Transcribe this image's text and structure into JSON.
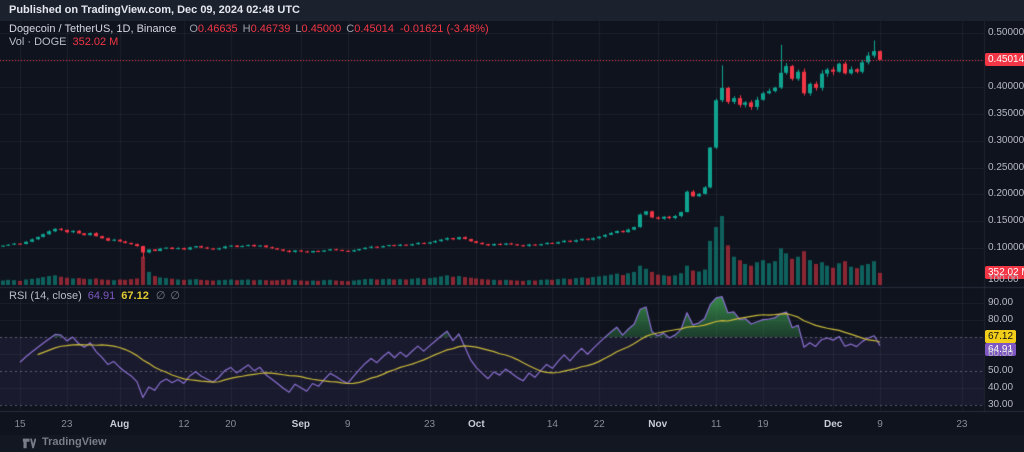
{
  "published_bar": {
    "text": "Published on TradingView.com, Dec 09, 2024 02:48 UTC"
  },
  "legend": {
    "symbol": "Dogecoin / TetherUS, 1D, Binance",
    "ohlc": {
      "o_label": "O",
      "o": "0.46635",
      "h_label": "H",
      "h": "0.46739",
      "l_label": "L",
      "l": "0.45000",
      "c_label": "C",
      "c": "0.45014",
      "change": "-0.01621 (-3.48%)"
    },
    "volume_label": "Vol · DOGE",
    "volume_value": "352.02 M"
  },
  "rsi_legend": {
    "label": "RSI (14, close)",
    "rsi_value": "64.91",
    "ma_value": "67.12",
    "empty1": "∅",
    "empty2": "∅"
  },
  "price_axis": {
    "ticks": [
      {
        "label": "0.50000",
        "value": 0.5
      },
      {
        "label": "0.40000",
        "value": 0.4
      },
      {
        "label": "0.35000",
        "value": 0.35
      },
      {
        "label": "0.30000",
        "value": 0.3
      },
      {
        "label": "0.25000",
        "value": 0.25
      },
      {
        "label": "0.20000",
        "value": 0.2
      },
      {
        "label": "0.15000",
        "value": 0.15
      },
      {
        "label": "0.10000",
        "value": 0.1
      }
    ],
    "price_badge": {
      "label": "0.45014",
      "value": 0.45014
    },
    "volume_badge": {
      "label": "352.02 M"
    }
  },
  "rsi_axis": {
    "ticks": [
      {
        "label": "100.00",
        "value": 100
      },
      {
        "label": "90.00",
        "value": 90
      },
      {
        "label": "80.00",
        "value": 80
      },
      {
        "label": "60.00",
        "value": 60
      },
      {
        "label": "50.00",
        "value": 50
      },
      {
        "label": "40.00",
        "value": 40
      },
      {
        "label": "30.00",
        "value": 30
      }
    ],
    "ma_badge": {
      "label": "67.12",
      "value": 67.12
    },
    "rsi_badge": {
      "label": "64.91",
      "value": 64.91
    }
  },
  "time_axis": {
    "ticks": [
      {
        "label": "15",
        "index": 3,
        "month": false
      },
      {
        "label": "23",
        "index": 11,
        "month": false
      },
      {
        "label": "Aug",
        "index": 20,
        "month": true
      },
      {
        "label": "12",
        "index": 31,
        "month": false
      },
      {
        "label": "20",
        "index": 39,
        "month": false
      },
      {
        "label": "Sep",
        "index": 51,
        "month": true
      },
      {
        "label": "9",
        "index": 59,
        "month": false
      },
      {
        "label": "23",
        "index": 73,
        "month": false
      },
      {
        "label": "Oct",
        "index": 81,
        "month": true
      },
      {
        "label": "14",
        "index": 94,
        "month": false
      },
      {
        "label": "22",
        "index": 102,
        "month": false
      },
      {
        "label": "Nov",
        "index": 112,
        "month": true
      },
      {
        "label": "11",
        "index": 122,
        "month": false
      },
      {
        "label": "19",
        "index": 130,
        "month": false
      },
      {
        "label": "Dec",
        "index": 142,
        "month": true
      },
      {
        "label": "9",
        "index": 150,
        "month": false
      },
      {
        "label": "23",
        "index": 164,
        "month": false
      }
    ]
  },
  "footer": {
    "brand": "TradingView"
  },
  "colors": {
    "up": "#0fa390",
    "down": "#f23645",
    "vol_up": "rgba(15,163,144,0.55)",
    "vol_down": "rgba(242,54,69,0.55)",
    "rsi_line": "#8a6fd0",
    "rsi_ma_line": "#c9b93a",
    "price_line": "#f23645",
    "band": "rgba(126,87,194,0.10)",
    "overbought_fill": "rgba(60,160,80,0.55)",
    "badge_yellow": "#f2ce1b",
    "badge_purple": "#7e57c2",
    "badge_red": "#f23645"
  },
  "chart_data": {
    "type": "candlestick+volume+rsi",
    "symbol": "DOGE/USDT",
    "exchange": "Binance",
    "interval": "1D",
    "date_range": "2024-07-12 to 2024-12-09 (daily candles)",
    "price_axis_range": [
      0.03,
      0.52
    ],
    "rsi_axis_range": [
      26,
      100
    ],
    "first_open": 0.103,
    "closes": [
      0.1048,
      0.1065,
      0.1085,
      0.1078,
      0.112,
      0.1165,
      0.121,
      0.126,
      0.1315,
      0.136,
      0.134,
      0.1298,
      0.1322,
      0.1276,
      0.1243,
      0.128,
      0.1224,
      0.1185,
      0.114,
      0.1158,
      0.1125,
      0.1098,
      0.1076,
      0.104,
      0.092,
      0.0975,
      0.0948,
      0.0992,
      0.101,
      0.0985,
      0.1002,
      0.0976,
      0.1015,
      0.1038,
      0.1012,
      0.0995,
      0.0978,
      0.1,
      0.1032,
      0.1048,
      0.1022,
      0.104,
      0.106,
      0.1035,
      0.105,
      0.1018,
      0.0998,
      0.0976,
      0.0952,
      0.093,
      0.0958,
      0.094,
      0.0922,
      0.0948,
      0.0935,
      0.0958,
      0.098,
      0.0968,
      0.0952,
      0.094,
      0.0962,
      0.0985,
      0.1008,
      0.1028,
      0.1015,
      0.1038,
      0.1058,
      0.1042,
      0.1065,
      0.1052,
      0.1075,
      0.1098,
      0.1085,
      0.1108,
      0.1132,
      0.116,
      0.1188,
      0.1165,
      0.1205,
      0.117,
      0.1128,
      0.1098,
      0.1075,
      0.1052,
      0.1078,
      0.1065,
      0.1088,
      0.1072,
      0.1055,
      0.1042,
      0.1068,
      0.1052,
      0.1075,
      0.1098,
      0.1085,
      0.1112,
      0.1138,
      0.112,
      0.1148,
      0.1175,
      0.1158,
      0.1185,
      0.1215,
      0.1248,
      0.1282,
      0.132,
      0.1298,
      0.1345,
      0.1392,
      0.1625,
      0.1685,
      0.1572,
      0.1548,
      0.1585,
      0.156,
      0.1598,
      0.1672,
      0.205,
      0.1965,
      0.201,
      0.213,
      0.287,
      0.375,
      0.398,
      0.372,
      0.379,
      0.3665,
      0.371,
      0.3625,
      0.3758,
      0.388,
      0.392,
      0.3985,
      0.426,
      0.4385,
      0.415,
      0.428,
      0.388,
      0.4055,
      0.398,
      0.4245,
      0.432,
      0.428,
      0.443,
      0.425,
      0.4325,
      0.428,
      0.4455,
      0.458,
      0.46635,
      0.45014
    ],
    "volumes_millions": [
      130,
      150,
      140,
      120,
      160,
      180,
      200,
      230,
      260,
      280,
      240,
      210,
      190,
      200,
      180,
      170,
      190,
      160,
      150,
      140,
      160,
      150,
      170,
      190,
      820,
      380,
      260,
      220,
      200,
      180,
      160,
      150,
      160,
      170,
      150,
      140,
      130,
      140,
      150,
      160,
      140,
      150,
      160,
      140,
      150,
      140,
      130,
      140,
      150,
      160,
      140,
      130,
      120,
      130,
      120,
      140,
      150,
      130,
      120,
      110,
      130,
      150,
      170,
      180,
      160,
      170,
      180,
      160,
      170,
      160,
      180,
      200,
      180,
      200,
      220,
      250,
      280,
      240,
      260,
      230,
      210,
      190,
      170,
      160,
      150,
      140,
      150,
      140,
      130,
      120,
      140,
      130,
      150,
      160,
      150,
      170,
      190,
      170,
      200,
      220,
      200,
      230,
      250,
      270,
      300,
      330,
      290,
      340,
      380,
      560,
      470,
      380,
      300,
      280,
      260,
      280,
      340,
      560,
      420,
      390,
      450,
      1280,
      1680,
      2000,
      1150,
      820,
      720,
      610,
      560,
      660,
      720,
      630,
      690,
      1060,
      920,
      760,
      820,
      980,
      720,
      610,
      660,
      560,
      500,
      630,
      690,
      530,
      490,
      570,
      610,
      690,
      352
    ],
    "high_overrides": {
      "24": 0.1045,
      "123": 0.4397,
      "133": 0.478,
      "149": 0.486,
      "150": 0.46739
    },
    "low_overrides": {
      "24": 0.0815,
      "150": 0.45
    },
    "last_candle": {
      "open": 0.46635,
      "high": 0.46739,
      "low": 0.45,
      "close": 0.45014
    },
    "volume_last_millions": 352.02,
    "rsi": {
      "period": 14,
      "last": 64.91,
      "ma_period": 14,
      "ma_last": 67.12,
      "overbought": 70,
      "mid": 50,
      "oversold": 30
    }
  }
}
